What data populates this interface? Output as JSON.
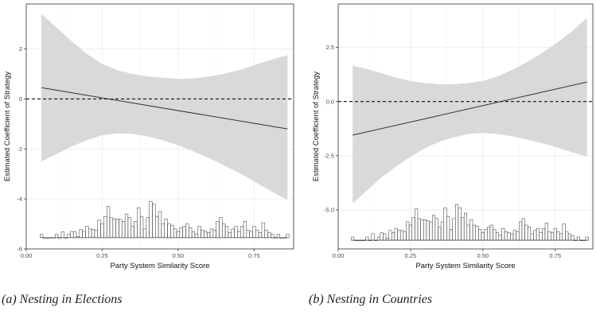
{
  "colors": {
    "band": "#d9d9d9",
    "line": "#333333",
    "grid": "#ebebeb",
    "panel_border": "#333333",
    "hist_fill": "#ffffff",
    "hist_edge": "#333333"
  },
  "captions": [
    "(a) Nesting in Elections",
    "(b) Nesting in Countries"
  ],
  "chart_data": [
    {
      "type": "line",
      "title": "",
      "xlabel": "Party System Similarity Score",
      "ylabel": "Estimated Coefficient of Strategy",
      "xlim": [
        0.0,
        0.88
      ],
      "ylim": [
        -6.0,
        3.8
      ],
      "x_ticks": [
        0.0,
        0.25,
        0.5,
        0.75
      ],
      "x_tick_labels": [
        "0.00",
        "0.25",
        "0.50",
        "0.75"
      ],
      "y_ticks": [
        -6,
        -4,
        -2,
        0,
        2
      ],
      "y_tick_labels": [
        "-6",
        "-4",
        "-2",
        "0",
        "2"
      ],
      "reference_line": 0,
      "grid": true,
      "line": {
        "x": [
          0.05,
          0.86
        ],
        "y": [
          0.45,
          -1.2
        ]
      },
      "band": {
        "x": [
          0.05,
          0.1,
          0.15,
          0.2,
          0.25,
          0.3,
          0.35,
          0.4,
          0.45,
          0.5,
          0.55,
          0.6,
          0.65,
          0.7,
          0.75,
          0.8,
          0.86
        ],
        "upper": [
          3.4,
          2.85,
          2.3,
          1.8,
          1.4,
          1.15,
          1.0,
          0.9,
          0.85,
          0.8,
          0.82,
          0.9,
          1.0,
          1.15,
          1.35,
          1.55,
          1.75
        ],
        "lower": [
          -2.5,
          -2.2,
          -1.9,
          -1.65,
          -1.45,
          -1.38,
          -1.4,
          -1.5,
          -1.65,
          -1.85,
          -2.1,
          -2.35,
          -2.65,
          -2.95,
          -3.3,
          -3.65,
          -4.05
        ]
      },
      "histogram": {
        "baseline": -5.55,
        "bin_width": 0.00965,
        "x": [
          0.05,
          0.06,
          0.07,
          0.08,
          0.09,
          0.1,
          0.11,
          0.12,
          0.13,
          0.14,
          0.15,
          0.16,
          0.17,
          0.18,
          0.19,
          0.2,
          0.21,
          0.22,
          0.23,
          0.24,
          0.25,
          0.26,
          0.27,
          0.28,
          0.29,
          0.3,
          0.31,
          0.32,
          0.33,
          0.34,
          0.35,
          0.36,
          0.37,
          0.38,
          0.39,
          0.4,
          0.41,
          0.42,
          0.43,
          0.44,
          0.45,
          0.46,
          0.47,
          0.48,
          0.49,
          0.5,
          0.51,
          0.52,
          0.53,
          0.54,
          0.55,
          0.56,
          0.57,
          0.58,
          0.59,
          0.6,
          0.61,
          0.62,
          0.63,
          0.64,
          0.65,
          0.66,
          0.67,
          0.68,
          0.69,
          0.7,
          0.71,
          0.72,
          0.73,
          0.74,
          0.75,
          0.76,
          0.77,
          0.78,
          0.79,
          0.8,
          0.81,
          0.82,
          0.83,
          0.84,
          0.85,
          0.86
        ],
        "y": [
          -5.42,
          -5.55,
          -5.55,
          -5.55,
          -5.55,
          -5.42,
          -5.55,
          -5.32,
          -5.55,
          -5.42,
          -5.3,
          -5.32,
          -5.5,
          -5.22,
          -5.3,
          -5.1,
          -5.2,
          -5.22,
          -5.25,
          -4.85,
          -5.0,
          -4.7,
          -4.3,
          -4.75,
          -4.8,
          -4.8,
          -4.82,
          -4.9,
          -4.6,
          -4.75,
          -5.1,
          -4.9,
          -4.35,
          -4.7,
          -5.2,
          -4.75,
          -4.1,
          -4.2,
          -4.7,
          -4.5,
          -5.0,
          -4.8,
          -5.0,
          -5.05,
          -5.2,
          -5.3,
          -5.15,
          -5.1,
          -5.0,
          -5.15,
          -5.32,
          -5.4,
          -5.1,
          -5.25,
          -5.3,
          -5.35,
          -5.2,
          -5.25,
          -4.9,
          -4.75,
          -5.0,
          -5.1,
          -5.35,
          -5.2,
          -5.1,
          -5.3,
          -5.1,
          -4.9,
          -5.25,
          -5.3,
          -5.1,
          -5.25,
          -5.35,
          -4.95,
          -5.25,
          -5.35,
          -5.42,
          -5.55,
          -5.42,
          -5.55,
          -5.55,
          -5.42
        ]
      }
    },
    {
      "type": "line",
      "title": "",
      "xlabel": "Party System Similarity Score",
      "ylabel": "Estimated Coefficient of Strategy",
      "xlim": [
        0.0,
        0.88
      ],
      "ylim": [
        -6.8,
        4.5
      ],
      "x_ticks": [
        0.0,
        0.25,
        0.5,
        0.75
      ],
      "x_tick_labels": [
        "0.00",
        "0.25",
        "0.50",
        "0.75"
      ],
      "y_ticks": [
        -5.0,
        -2.5,
        0.0,
        2.5
      ],
      "y_tick_labels": [
        "-5.0",
        "-2.5",
        "0.0",
        "2.5"
      ],
      "reference_line": 0,
      "grid": true,
      "line": {
        "x": [
          0.05,
          0.86
        ],
        "y": [
          -1.55,
          0.9
        ]
      },
      "band": {
        "x": [
          0.05,
          0.1,
          0.15,
          0.2,
          0.25,
          0.3,
          0.35,
          0.4,
          0.45,
          0.5,
          0.55,
          0.6,
          0.65,
          0.7,
          0.75,
          0.8,
          0.86
        ],
        "upper": [
          1.65,
          1.5,
          1.3,
          1.1,
          0.95,
          0.85,
          0.8,
          0.8,
          0.85,
          0.95,
          1.15,
          1.45,
          1.8,
          2.2,
          2.65,
          3.15,
          3.85
        ],
        "lower": [
          -4.7,
          -4.1,
          -3.5,
          -3.0,
          -2.55,
          -2.15,
          -1.85,
          -1.65,
          -1.5,
          -1.45,
          -1.5,
          -1.6,
          -1.75,
          -1.9,
          -2.1,
          -2.3,
          -2.55
        ]
      },
      "histogram": {
        "baseline": -6.4,
        "bin_width": 0.00965,
        "x": [
          0.05,
          0.06,
          0.07,
          0.08,
          0.09,
          0.1,
          0.11,
          0.12,
          0.13,
          0.14,
          0.15,
          0.16,
          0.17,
          0.18,
          0.19,
          0.2,
          0.21,
          0.22,
          0.23,
          0.24,
          0.25,
          0.26,
          0.27,
          0.28,
          0.29,
          0.3,
          0.31,
          0.32,
          0.33,
          0.34,
          0.35,
          0.36,
          0.37,
          0.38,
          0.39,
          0.4,
          0.41,
          0.42,
          0.43,
          0.44,
          0.45,
          0.46,
          0.47,
          0.48,
          0.49,
          0.5,
          0.51,
          0.52,
          0.53,
          0.54,
          0.55,
          0.56,
          0.57,
          0.58,
          0.59,
          0.6,
          0.61,
          0.62,
          0.63,
          0.64,
          0.65,
          0.66,
          0.67,
          0.68,
          0.69,
          0.7,
          0.71,
          0.72,
          0.73,
          0.74,
          0.75,
          0.76,
          0.77,
          0.78,
          0.79,
          0.8,
          0.81,
          0.82,
          0.83,
          0.84,
          0.85,
          0.86
        ],
        "y": [
          -6.25,
          -6.4,
          -6.4,
          -6.4,
          -6.4,
          -6.25,
          -6.4,
          -6.1,
          -6.4,
          -6.25,
          -6.05,
          -6.1,
          -6.3,
          -5.95,
          -6.05,
          -5.85,
          -5.95,
          -5.95,
          -6.0,
          -5.55,
          -5.7,
          -5.35,
          -4.95,
          -5.4,
          -5.45,
          -5.45,
          -5.5,
          -5.55,
          -5.25,
          -5.4,
          -5.8,
          -5.55,
          -4.9,
          -5.3,
          -5.9,
          -5.4,
          -4.75,
          -4.9,
          -5.35,
          -5.15,
          -5.7,
          -5.45,
          -5.7,
          -5.75,
          -5.9,
          -6.05,
          -5.9,
          -5.8,
          -5.7,
          -5.9,
          -6.05,
          -6.15,
          -5.85,
          -6.0,
          -6.05,
          -6.1,
          -5.95,
          -6.0,
          -5.55,
          -5.4,
          -5.7,
          -5.8,
          -6.1,
          -5.95,
          -5.85,
          -6.05,
          -5.85,
          -5.6,
          -6.0,
          -6.05,
          -5.85,
          -6.0,
          -6.1,
          -5.65,
          -6.0,
          -6.1,
          -6.2,
          -6.4,
          -6.25,
          -6.4,
          -6.4,
          -6.25
        ]
      }
    }
  ]
}
